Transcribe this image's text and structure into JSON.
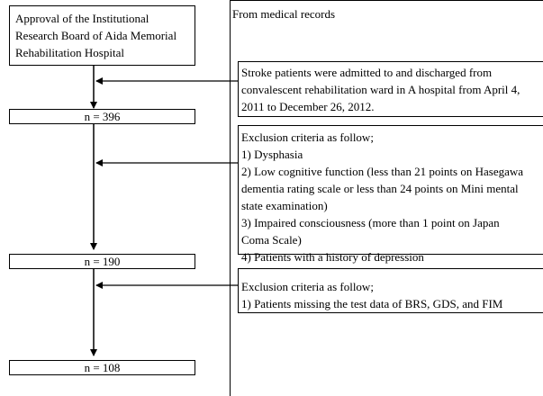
{
  "approval_box": {
    "lines": [
      "Approval of the Institutional",
      "Research Board of Aida Memorial",
      "Rehabilitation Hospital"
    ]
  },
  "counts": {
    "first": "n = 396",
    "second": "n = 190",
    "third": "n = 108"
  },
  "records_panel": {
    "title": "From medical records"
  },
  "inclusion_box": {
    "lines": [
      "Stroke patients were admitted to and discharged from",
      "convalescent rehabilitation ward in A hospital from April 4,",
      "2011 to December 26, 2012."
    ]
  },
  "exclusion_box_1": {
    "lines": [
      "Exclusion criteria as follow;",
      "1) Dysphasia",
      "2) Low cognitive function (less than 21 points on Hasegawa",
      "dementia rating scale or less than 24 points on Mini mental",
      "state examination)",
      "3) Impaired consciousness (more than 1 point on Japan",
      "Coma Scale)",
      "4) Patients with a history of depression"
    ]
  },
  "exclusion_box_2": {
    "lines": [
      "Exclusion criteria as follow;",
      "1) Patients missing the test data of BRS, GDS, and FIM"
    ]
  }
}
